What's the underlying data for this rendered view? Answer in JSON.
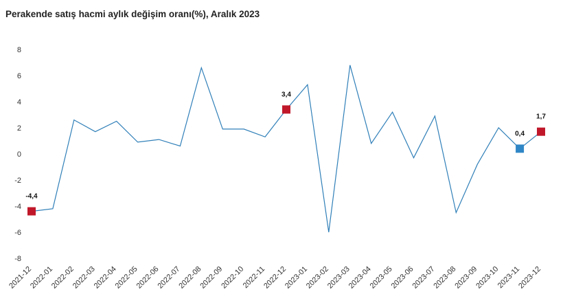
{
  "chart_data": {
    "type": "line",
    "title": "Perakende satış hacmi aylık değişim oranı(%), Aralık 2023",
    "xlabel": "",
    "ylabel": "",
    "ylim": [
      -8,
      8
    ],
    "yticks": [
      "8",
      "6",
      "4",
      "2",
      "0",
      "-2",
      "-4",
      "-6",
      "-8"
    ],
    "ytick_values": [
      8,
      6,
      4,
      2,
      0,
      -2,
      -4,
      -6,
      -8
    ],
    "categories": [
      "2021-12",
      "2022-01",
      "2022-02",
      "2022-03",
      "2022-04",
      "2022-05",
      "2022-06",
      "2022-07",
      "2022-08",
      "2022-09",
      "2022-10",
      "2022-11",
      "2022-12",
      "2023-01",
      "2023-02",
      "2023-03",
      "2023-04",
      "2023-05",
      "2023-06",
      "2023-07",
      "2023-08",
      "2023-09",
      "2023-10",
      "2023-11",
      "2023-12"
    ],
    "series": [
      {
        "values": [
          -4.4,
          -4.2,
          2.6,
          1.7,
          2.5,
          0.9,
          1.1,
          0.6,
          6.6,
          1.9,
          1.9,
          1.3,
          3.4,
          5.3,
          -6.0,
          6.8,
          0.8,
          3.2,
          -0.3,
          2.9,
          -4.5,
          -0.8,
          2.0,
          0.4,
          1.7
        ],
        "color": "#2f7fb8"
      }
    ],
    "highlighted_points": [
      {
        "index": 0,
        "label": "-4,4",
        "color": "#c0182a"
      },
      {
        "index": 12,
        "label": "3,4",
        "color": "#c0182a"
      },
      {
        "index": 23,
        "label": "0,4",
        "color": "#2f86c6"
      },
      {
        "index": 24,
        "label": "1,7",
        "color": "#c0182a"
      }
    ],
    "grid": false,
    "legend": "none"
  }
}
